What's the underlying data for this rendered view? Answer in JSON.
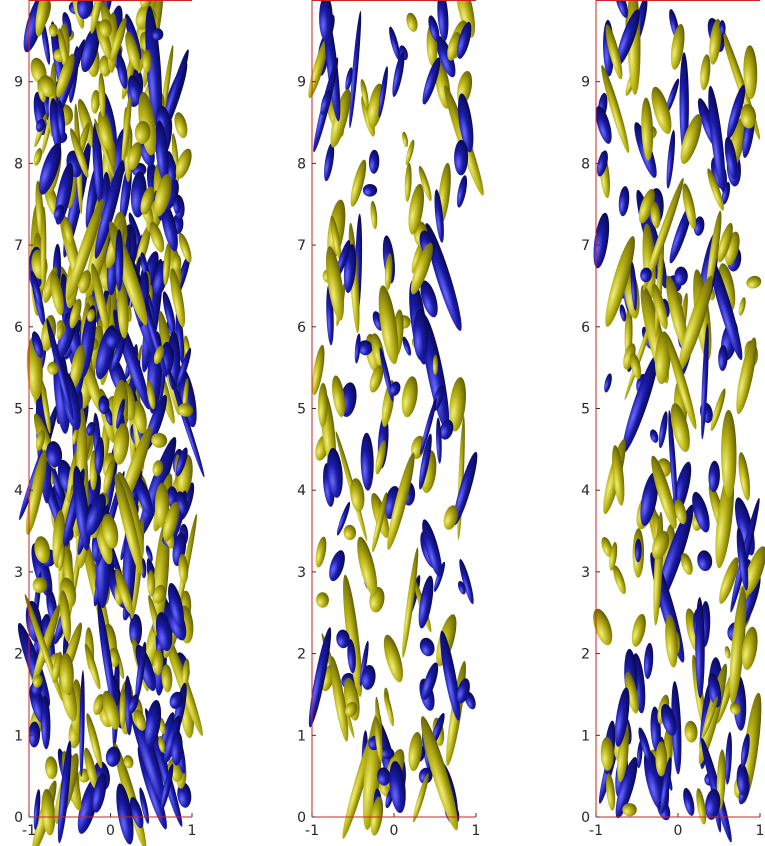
{
  "chart_data": [
    {
      "type": "isosurface",
      "panel": 1,
      "xlim": [
        -1,
        1
      ],
      "ylim": [
        0,
        10
      ],
      "x_ticks": [
        "-1",
        "0",
        "1"
      ],
      "y_ticks": [
        "0",
        "1",
        "2",
        "3",
        "4",
        "5",
        "6",
        "7",
        "8",
        "9"
      ],
      "colors": {
        "positive": "#b5b012",
        "negative": "#1a1aa8",
        "frame": "#cc2222"
      },
      "density": 1.0,
      "seed": 11
    },
    {
      "type": "isosurface",
      "panel": 2,
      "xlim": [
        -1,
        1
      ],
      "ylim": [
        0,
        10
      ],
      "x_ticks": [
        "-1",
        "0",
        "1"
      ],
      "y_ticks": [
        "0",
        "1",
        "2",
        "3",
        "4",
        "5",
        "6",
        "7",
        "8",
        "9"
      ],
      "colors": {
        "positive": "#b5b012",
        "negative": "#1a1aa8",
        "frame": "#cc2222"
      },
      "density": 0.35,
      "seed": 23
    },
    {
      "type": "isosurface",
      "panel": 3,
      "xlim": [
        -1,
        1
      ],
      "ylim": [
        0,
        10
      ],
      "x_ticks": [
        "-1",
        "0",
        "1"
      ],
      "y_ticks": [
        "0",
        "1",
        "2",
        "3",
        "4",
        "5",
        "6",
        "7",
        "8",
        "9"
      ],
      "colors": {
        "positive": "#b5b012",
        "negative": "#1a1aa8",
        "frame": "#cc2222"
      },
      "density": 0.4,
      "seed": 37
    }
  ]
}
